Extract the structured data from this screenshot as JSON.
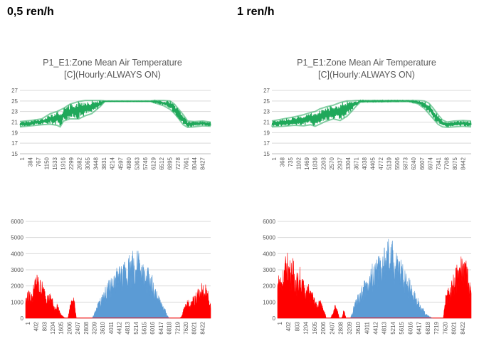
{
  "headings": {
    "left": "0,5 ren/h",
    "right": "1 ren/h"
  },
  "chart_data": [
    {
      "id": "temp_left",
      "type": "line",
      "title_line1": "P1_E1:Zone Mean Air Temperature",
      "title_line2": "[C](Hourly:ALWAYS ON)",
      "ylim": [
        15,
        27
      ],
      "yticks": [
        "27",
        "25",
        "23",
        "21",
        "19",
        "17",
        "15"
      ],
      "grid": true,
      "xlabels": [
        "1",
        "384",
        "767",
        "1150",
        "1533",
        "1916",
        "2299",
        "2682",
        "3065",
        "3448",
        "3831",
        "4214",
        "4597",
        "4980",
        "5363",
        "5746",
        "6129",
        "6512",
        "6895",
        "7278",
        "7661",
        "8044",
        "8427"
      ],
      "xmax": 8760,
      "color": "#1fa85a",
      "series": [
        {
          "name": "low",
          "x": [
            1,
            500,
            1000,
            1400,
            1700,
            1850,
            2000,
            2300,
            2700,
            3000,
            3300,
            3500,
            3700,
            3900,
            6000,
            6300,
            6600,
            6900,
            7100,
            7300,
            7500,
            7700,
            8000,
            8400,
            8760
          ],
          "values": [
            20.1,
            20.3,
            20.5,
            20.6,
            20.4,
            20.1,
            21.2,
            21.6,
            21.6,
            22.2,
            22.6,
            23.3,
            24.0,
            24.9,
            24.9,
            24.5,
            24.1,
            23.4,
            22.6,
            21.6,
            20.5,
            20.0,
            20.1,
            20.3,
            20.2
          ]
        },
        {
          "name": "high",
          "x": [
            1,
            500,
            1000,
            1400,
            1700,
            1850,
            2000,
            2300,
            2700,
            3000,
            3300,
            3500,
            3700,
            3900,
            6000,
            6300,
            6600,
            6900,
            7100,
            7300,
            7500,
            7700,
            8000,
            8400,
            8760
          ],
          "values": [
            21.1,
            21.3,
            21.6,
            22.6,
            23.0,
            23.3,
            23.6,
            24.4,
            24.9,
            25.1,
            25.1,
            25.1,
            25.1,
            25.0,
            25.0,
            25.1,
            25.1,
            25.0,
            24.4,
            23.4,
            22.4,
            21.2,
            21.1,
            21.2,
            21.0
          ]
        }
      ]
    },
    {
      "id": "temp_right",
      "type": "line",
      "title_line1": "P1_E1:Zone Mean Air Temperature",
      "title_line2": "[C](Hourly:ALWAYS ON)",
      "ylim": [
        15,
        27
      ],
      "yticks": [
        "27",
        "25",
        "23",
        "21",
        "19",
        "17",
        "15"
      ],
      "grid": true,
      "xlabels": [
        "1",
        "368",
        "735",
        "1102",
        "1469",
        "1836",
        "2203",
        "2570",
        "2937",
        "3304",
        "3671",
        "4038",
        "4405",
        "4772",
        "5139",
        "5506",
        "5873",
        "6240",
        "6607",
        "6974",
        "7341",
        "7708",
        "8075",
        "8442"
      ],
      "xmax": 8760,
      "color": "#1fa85a",
      "series": [
        {
          "name": "low",
          "x": [
            1,
            500,
            1000,
            1400,
            1700,
            1900,
            2100,
            2400,
            2700,
            3000,
            3300,
            3500,
            3700,
            3900,
            6000,
            6400,
            6700,
            6900,
            7100,
            7300,
            7500,
            7700,
            8000,
            8400,
            8760
          ],
          "values": [
            20.1,
            20.2,
            20.4,
            20.3,
            20.5,
            20.2,
            20.6,
            21.2,
            21.6,
            21.3,
            22.1,
            23.0,
            24.0,
            24.8,
            24.9,
            24.5,
            23.6,
            22.6,
            21.6,
            20.6,
            20.1,
            20.0,
            20.1,
            20.2,
            20.1
          ]
        },
        {
          "name": "high",
          "x": [
            1,
            500,
            1000,
            1400,
            1700,
            1900,
            2100,
            2400,
            2700,
            3000,
            3300,
            3500,
            3700,
            3900,
            6000,
            6400,
            6700,
            6900,
            7100,
            7300,
            7500,
            7700,
            8000,
            8400,
            8760
          ],
          "values": [
            21.2,
            21.6,
            22.0,
            22.4,
            22.8,
            23.0,
            23.5,
            23.9,
            24.2,
            24.7,
            25.0,
            25.0,
            25.1,
            25.1,
            25.1,
            25.1,
            25.0,
            24.6,
            23.6,
            22.4,
            21.4,
            21.0,
            21.2,
            21.3,
            21.2
          ]
        }
      ]
    },
    {
      "id": "load_left",
      "type": "area",
      "ylim": [
        0,
        6000
      ],
      "yticks": [
        "6000",
        "5000",
        "4000",
        "3000",
        "2000",
        "1000",
        "0"
      ],
      "grid": true,
      "xlabels": [
        "1",
        "402",
        "803",
        "1204",
        "1605",
        "2006",
        "2407",
        "2808",
        "3209",
        "3610",
        "4011",
        "4412",
        "4813",
        "5214",
        "5615",
        "6016",
        "6417",
        "6818",
        "7219",
        "7620",
        "8021",
        "8422"
      ],
      "xmax": 8760,
      "series": [
        {
          "name": "heating",
          "color": "#ff0000",
          "x": [
            1,
            100,
            200,
            300,
            400,
            500,
            600,
            700,
            800,
            900,
            1000,
            1100,
            1200,
            1300,
            1400,
            1450,
            1500,
            1600,
            1700,
            1800,
            1900,
            2000,
            2100,
            2200,
            2250,
            2300,
            2400,
            7300,
            7400,
            7500,
            7600,
            7700,
            7800,
            7900,
            8000,
            8100,
            8200,
            8300,
            8400,
            8500,
            8600,
            8700,
            8760
          ],
          "values": [
            1400,
            1700,
            1800,
            1600,
            2400,
            2900,
            2700,
            2500,
            2300,
            2000,
            1700,
            1500,
            1700,
            1100,
            800,
            600,
            1000,
            500,
            200,
            100,
            0,
            0,
            800,
            1200,
            1500,
            1300,
            0,
            0,
            200,
            700,
            1000,
            1200,
            1000,
            1300,
            1500,
            1800,
            2000,
            2300,
            2400,
            2200,
            1900,
            1200,
            900
          ]
        },
        {
          "name": "cooling",
          "color": "#5b9bd5",
          "x": [
            3150,
            3250,
            3400,
            3500,
            3600,
            3700,
            3800,
            3900,
            4000,
            4100,
            4200,
            4300,
            4400,
            4500,
            4600,
            4700,
            4800,
            4900,
            5000,
            5100,
            5200,
            5300,
            5400,
            5500,
            5600,
            5700,
            5800,
            5900,
            6000,
            6100,
            6200,
            6300,
            6400,
            6500,
            6600,
            6700,
            6800
          ],
          "values": [
            0,
            300,
            900,
            1200,
            1400,
            1800,
            2000,
            2300,
            2600,
            2500,
            2800,
            3100,
            3300,
            3500,
            3200,
            3800,
            3600,
            4300,
            3800,
            4600,
            3600,
            4400,
            4000,
            3400,
            3600,
            3000,
            3200,
            2600,
            2700,
            1900,
            1800,
            1400,
            1200,
            800,
            600,
            200,
            0
          ]
        }
      ]
    },
    {
      "id": "load_right",
      "type": "area",
      "ylim": [
        0,
        6000
      ],
      "yticks": [
        "6000",
        "5000",
        "4000",
        "3000",
        "2000",
        "1000",
        "0"
      ],
      "grid": true,
      "xlabels": [
        "1",
        "402",
        "803",
        "1204",
        "1605",
        "2006",
        "2407",
        "2808",
        "3209",
        "3610",
        "4011",
        "4412",
        "4813",
        "5214",
        "5615",
        "6016",
        "6417",
        "6818",
        "7219",
        "7620",
        "8021",
        "8422"
      ],
      "xmax": 8760,
      "series": [
        {
          "name": "heating",
          "color": "#ff0000",
          "x": [
            1,
            100,
            200,
            300,
            400,
            500,
            600,
            700,
            800,
            900,
            1000,
            1100,
            1200,
            1300,
            1400,
            1500,
            1600,
            1700,
            1800,
            1900,
            2000,
            2100,
            2200,
            2300,
            2400,
            2500,
            2600,
            2700,
            2800,
            2900,
            3000,
            3100,
            3200,
            7500,
            7600,
            7700,
            7800,
            7900,
            8000,
            8100,
            8200,
            8300,
            8400,
            8500,
            8600,
            8700,
            8760
          ],
          "values": [
            2600,
            3000,
            2800,
            3600,
            4200,
            4000,
            3600,
            3800,
            3200,
            2800,
            3300,
            2600,
            2400,
            2000,
            2200,
            1800,
            1600,
            1200,
            900,
            1300,
            1000,
            700,
            0,
            0,
            0,
            400,
            900,
            600,
            0,
            0,
            600,
            0,
            0,
            0,
            1500,
            1800,
            2200,
            2500,
            3000,
            3300,
            3600,
            4000,
            3500,
            3800,
            3200,
            2300,
            1800
          ]
        },
        {
          "name": "cooling",
          "color": "#5b9bd5",
          "x": [
            3300,
            3400,
            3500,
            3600,
            3700,
            3800,
            3900,
            4000,
            4100,
            4200,
            4300,
            4400,
            4500,
            4600,
            4700,
            4800,
            4900,
            5000,
            5100,
            5200,
            5300,
            5400,
            5500,
            5600,
            5700,
            5800,
            5900,
            6000,
            6100,
            6200,
            6300,
            6400,
            6500,
            6600,
            6700,
            6800,
            6900,
            7000
          ],
          "values": [
            0,
            500,
            1100,
            1400,
            1700,
            1900,
            2400,
            2600,
            2900,
            3200,
            3500,
            3400,
            3800,
            4100,
            3600,
            4500,
            4200,
            5100,
            4400,
            5000,
            3800,
            4300,
            3600,
            3900,
            3200,
            3300,
            2700,
            2500,
            2000,
            1800,
            1400,
            1100,
            800,
            600,
            300,
            200,
            100,
            0
          ]
        }
      ]
    }
  ]
}
